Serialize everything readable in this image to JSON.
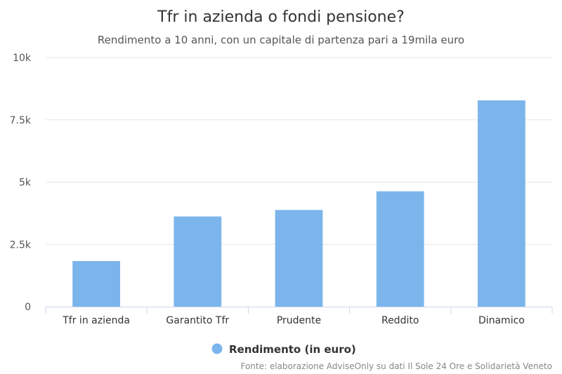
{
  "chart_data": {
    "type": "bar",
    "title": "Tfr in azienda o fondi pensione?",
    "subtitle": "Rendimento a 10 anni, con un capitale di partenza pari a 19mila euro",
    "categories": [
      "Tfr in azienda",
      "Garantito Tfr",
      "Prudente",
      "Reddito",
      "Dinamico"
    ],
    "series": [
      {
        "name": "Rendimento (in euro)",
        "values": [
          1830,
          3620,
          3880,
          4630,
          8280
        ]
      }
    ],
    "ylim": [
      0,
      10000
    ],
    "yticks": [
      0,
      2500,
      5000,
      7500,
      10000
    ],
    "ytick_labels": [
      "0",
      "2.5k",
      "5k",
      "7.5k",
      "10k"
    ],
    "grid": true,
    "legend_position": "bottom-center",
    "bar_color": "#7cb5ec",
    "source": "Fonte: elaborazione AdviseOnly su dati Il Sole 24 Ore e Solidarietà Veneto"
  }
}
